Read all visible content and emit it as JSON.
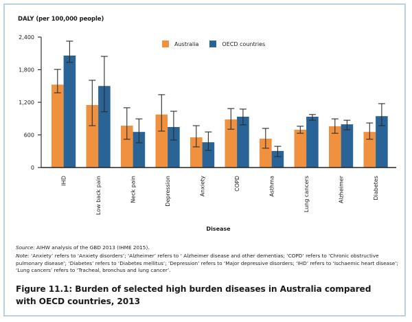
{
  "chart_data": {
    "type": "bar",
    "title": "Figure 11.1: Burden of selected high burden diseases in Australia compared with OECD countries, 2013",
    "ylabel": "DALY (per 100,000 people)",
    "xlabel": "Disease",
    "ylim": [
      0,
      2400
    ],
    "yticks": [
      0,
      600,
      1200,
      1800,
      2400
    ],
    "ytick_labels": [
      "0",
      "600",
      "1,200",
      "1,800",
      "2,400"
    ],
    "grid": false,
    "legend_position": "top-right",
    "categories": [
      "IHD",
      "Low back pain",
      "Neck pain",
      "Depression",
      "Anxiety",
      "COPD",
      "Asthma",
      "Lung cancers",
      "Alzheimer",
      "Diabetes"
    ],
    "series": [
      {
        "name": "Australia",
        "color": "#f0913f",
        "values": [
          1525,
          1150,
          770,
          975,
          555,
          885,
          530,
          695,
          760,
          655
        ],
        "error_low": [
          1375,
          770,
          520,
          670,
          380,
          705,
          355,
          630,
          630,
          520
        ],
        "error_high": [
          1805,
          1605,
          1100,
          1340,
          770,
          1085,
          720,
          760,
          895,
          820
        ]
      },
      {
        "name": "OECD countries",
        "color": "#2a6496",
        "values": [
          2060,
          1500,
          655,
          745,
          465,
          935,
          305,
          935,
          795,
          945
        ],
        "error_low": [
          1935,
          1025,
          455,
          505,
          315,
          785,
          200,
          870,
          695,
          770
        ],
        "error_high": [
          2325,
          2045,
          895,
          1035,
          655,
          1075,
          390,
          975,
          870,
          1175
        ]
      }
    ]
  },
  "notes": {
    "source_label": "Source:",
    "source_text": " AIHW analysis of the GBD 2013 (IHME 2015).",
    "note_label": "Note:",
    "note_text": " ‘Anxiety’ refers to ‘Anxiety disorders’; ‘Alzheimer’ refers to ‘ Alzheimer disease and other dementias; ‘COPD’ refers to ‘Chronic obstructive pulmonary disease’; ‘Diabetes’ refers to ‘Diabetes mellitus’; ‘Depression’ refers to ‘Major depressive disorders; ‘IHD’ refers to ‘Ischaemic heart disease’; ‘Lung cancers’ refers to ‘Tracheal, bronchus and lung cancer’."
  },
  "figure_title": "Figure 11.1: Burden of selected high burden diseases in Australia compared with OECD countries, 2013"
}
